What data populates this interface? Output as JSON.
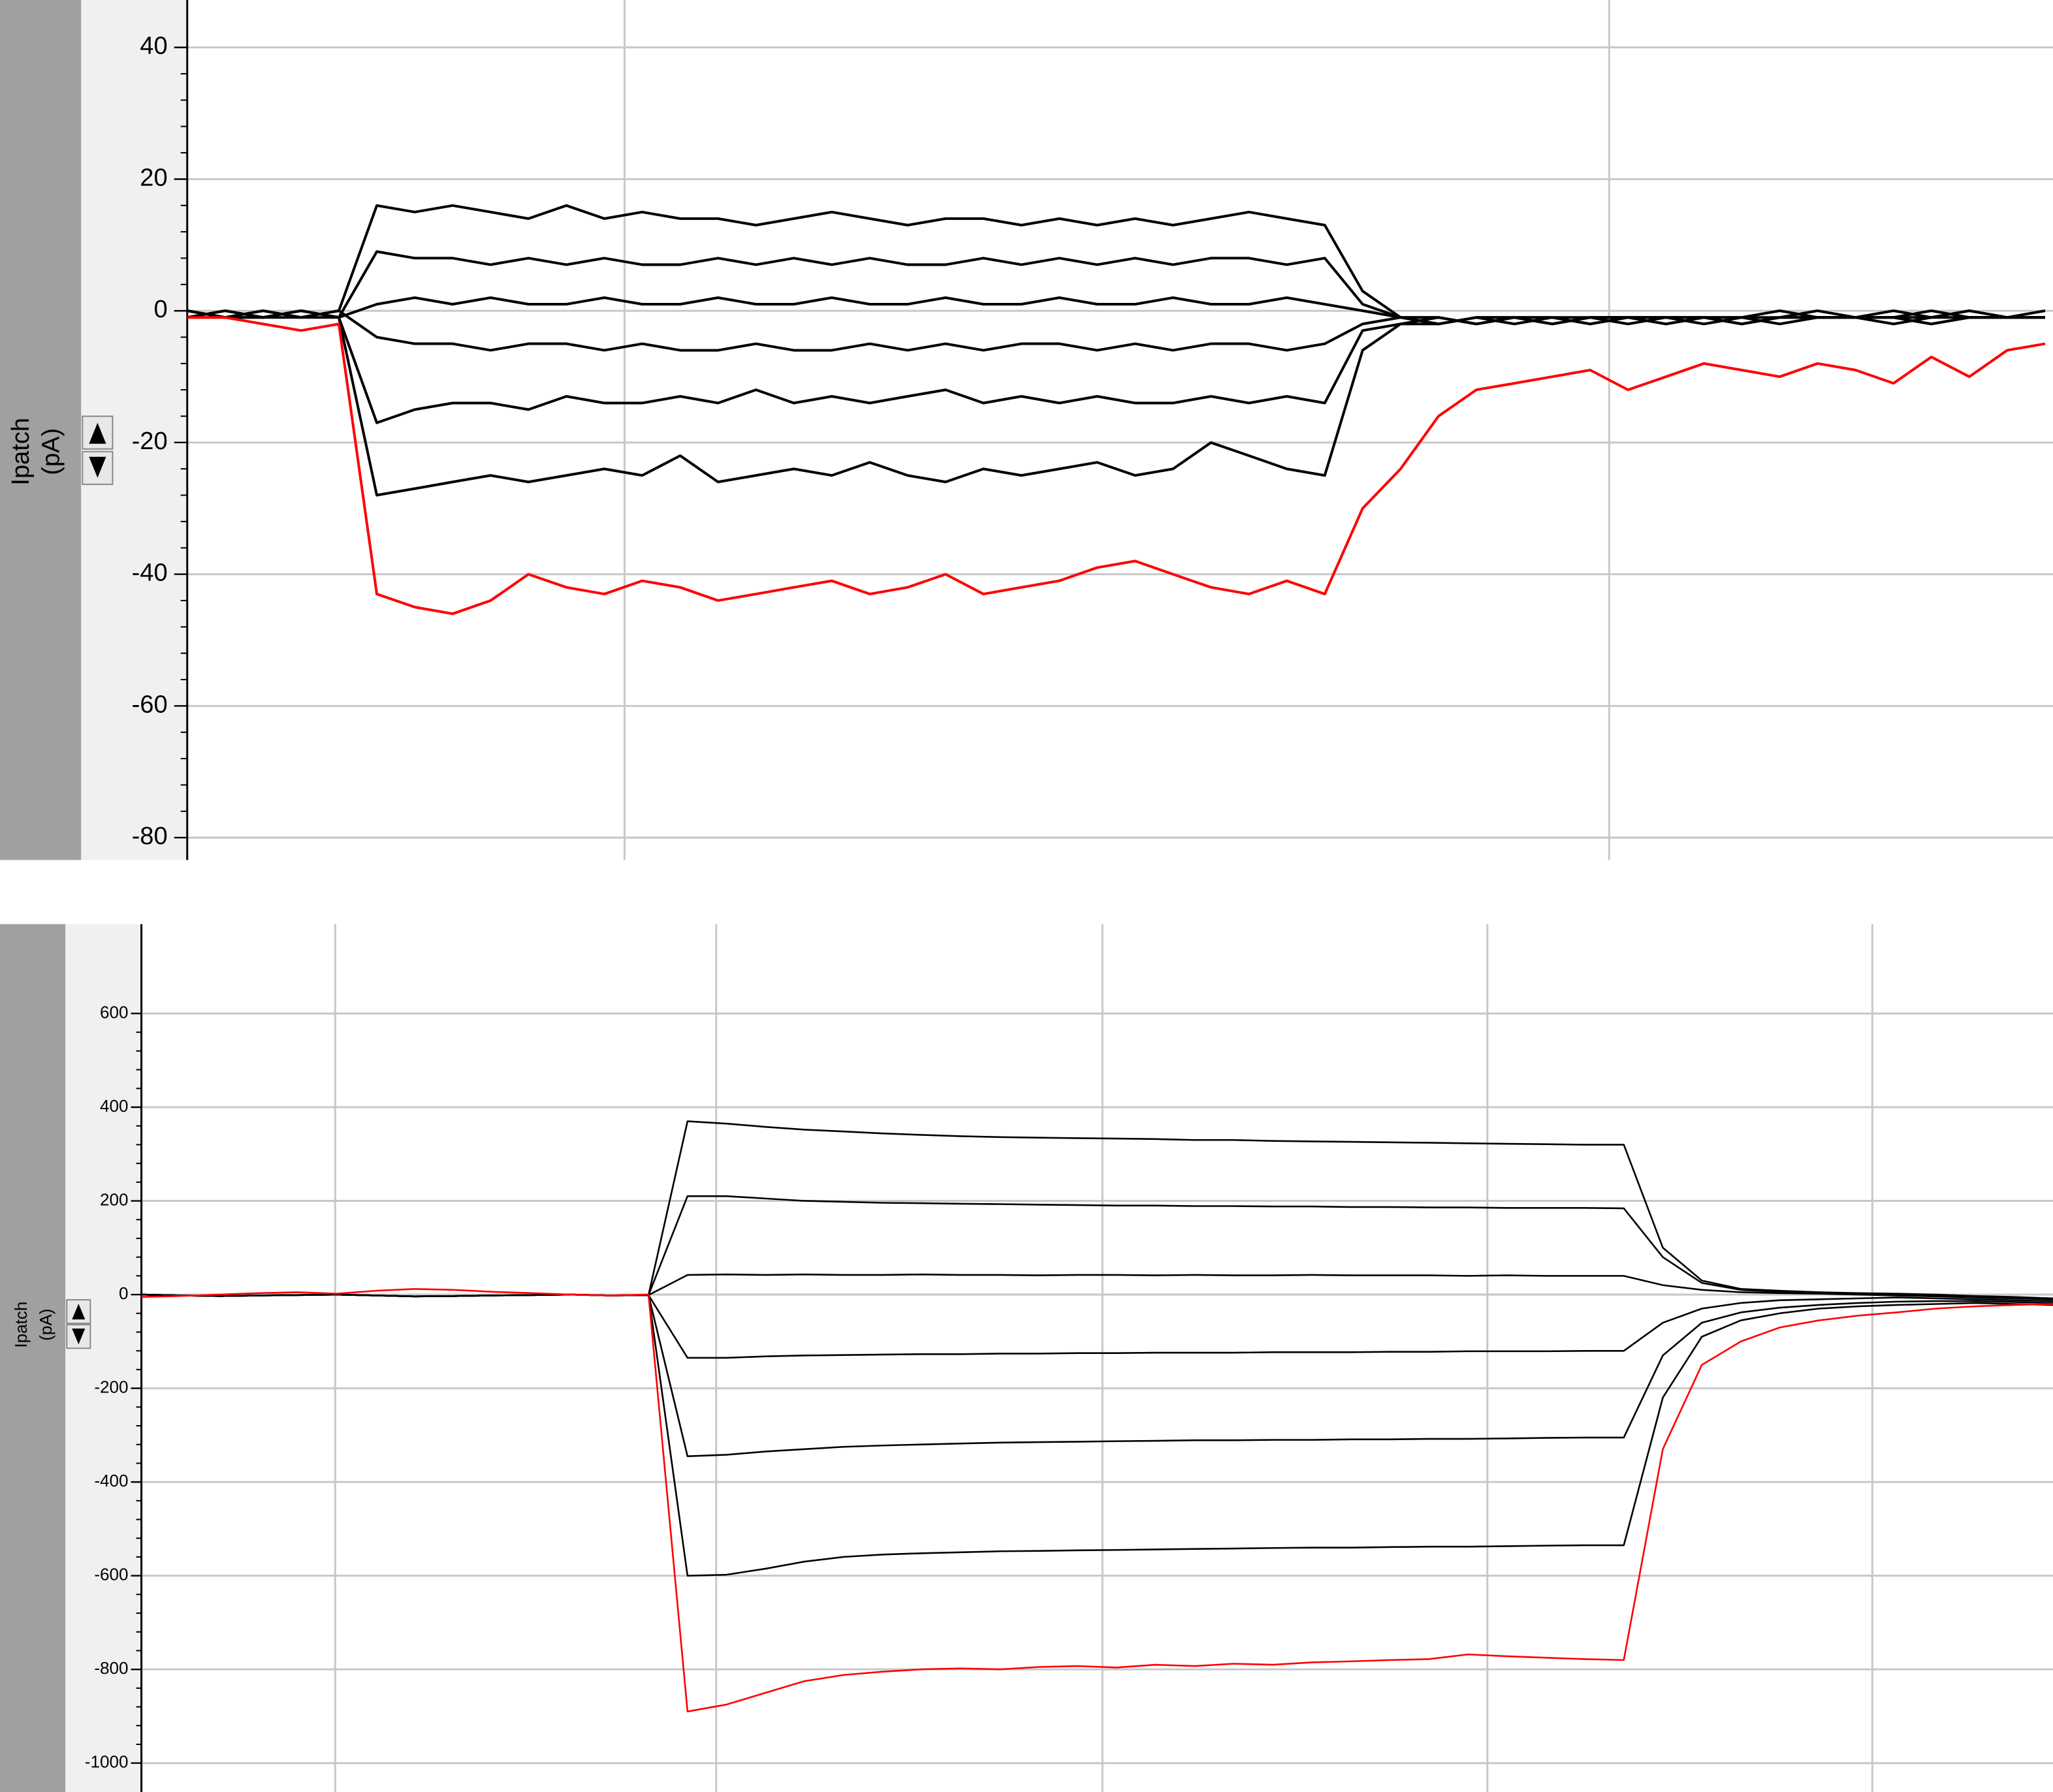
{
  "chart_data": [
    {
      "type": "line",
      "ylabel": "Ipatch",
      "yunit": "(pA)",
      "ylim": [
        -83.4,
        47.2
      ],
      "yticks": [
        40,
        20,
        0,
        -20,
        -40,
        -60,
        -80
      ],
      "grid": true,
      "categories": [
        null,
        null,
        null,
        null,
        null,
        null,
        null,
        null,
        null,
        null,
        null,
        null,
        null,
        null,
        null,
        null,
        null,
        null,
        null,
        null,
        null,
        null,
        null,
        null,
        null,
        null,
        null,
        null,
        null,
        null,
        null,
        null,
        null,
        null,
        null,
        null,
        null,
        null,
        null,
        null,
        null,
        null,
        null,
        null,
        null,
        null,
        null,
        null,
        null,
        null
      ],
      "series": [
        {
          "color": "#000000",
          "values": [
            0,
            -1,
            0,
            -1,
            0,
            16,
            15,
            16,
            15,
            14,
            16,
            14,
            15,
            14,
            14,
            13,
            14,
            15,
            14,
            13,
            14,
            14,
            13,
            14,
            13,
            14,
            13,
            14,
            15,
            14,
            13,
            3,
            -1,
            -1,
            -2,
            -1,
            -2,
            -1,
            -1,
            -1,
            -2,
            -1,
            0,
            -1,
            -1,
            0,
            -1,
            0,
            -1,
            0
          ]
        },
        {
          "color": "#000000",
          "values": [
            -1,
            0,
            -1,
            0,
            -1,
            9,
            8,
            8,
            7,
            8,
            7,
            8,
            7,
            7,
            8,
            7,
            8,
            7,
            8,
            7,
            7,
            8,
            7,
            8,
            7,
            8,
            7,
            8,
            8,
            7,
            8,
            1,
            -1,
            -2,
            -1,
            -1,
            -2,
            -1,
            -1,
            -2,
            -1,
            -1,
            -1,
            0,
            -1,
            -1,
            -1,
            0,
            -1,
            -1
          ]
        },
        {
          "color": "#000000",
          "values": [
            0,
            -1,
            -1,
            0,
            -1,
            1,
            2,
            1,
            2,
            1,
            1,
            2,
            1,
            1,
            2,
            1,
            1,
            2,
            1,
            1,
            2,
            1,
            1,
            2,
            1,
            1,
            2,
            1,
            1,
            2,
            1,
            0,
            -1,
            -1,
            -2,
            -1,
            -1,
            -2,
            -1,
            -1,
            -1,
            -2,
            -1,
            -1,
            -1,
            -1,
            0,
            -1,
            -1,
            -1
          ]
        },
        {
          "color": "#000000",
          "values": [
            -1,
            0,
            -1,
            -1,
            0,
            -4,
            -5,
            -5,
            -6,
            -5,
            -5,
            -6,
            -5,
            -6,
            -6,
            -5,
            -6,
            -6,
            -5,
            -6,
            -5,
            -6,
            -5,
            -5,
            -6,
            -5,
            -6,
            -5,
            -5,
            -6,
            -5,
            -2,
            -1,
            -2,
            -1,
            -1,
            -2,
            -1,
            -1,
            -2,
            -1,
            -1,
            -2,
            -1,
            -1,
            -1,
            -2,
            -1,
            -1,
            -1
          ]
        },
        {
          "color": "#000000",
          "values": [
            -1,
            -1,
            0,
            -1,
            -1,
            -17,
            -15,
            -14,
            -14,
            -15,
            -13,
            -14,
            -14,
            -13,
            -14,
            -12,
            -14,
            -13,
            -14,
            -13,
            -12,
            -14,
            -13,
            -14,
            -13,
            -14,
            -14,
            -13,
            -14,
            -13,
            -14,
            -3,
            -2,
            -1,
            -2,
            -1,
            -1,
            -2,
            -1,
            -1,
            -1,
            -2,
            -1,
            -1,
            -1,
            -1,
            -2,
            -1,
            -1,
            -1
          ]
        },
        {
          "color": "#000000",
          "values": [
            0,
            -1,
            -1,
            0,
            -1,
            -28,
            -27,
            -26,
            -25,
            -26,
            -25,
            -24,
            -25,
            -22,
            -26,
            -25,
            -24,
            -25,
            -23,
            -25,
            -26,
            -24,
            -25,
            -24,
            -23,
            -25,
            -24,
            -20,
            -22,
            -24,
            -25,
            -6,
            -2,
            -2,
            -1,
            -2,
            -1,
            -1,
            -2,
            -1,
            -1,
            -2,
            -1,
            -1,
            -1,
            -2,
            -1,
            -1,
            -1,
            -1
          ]
        },
        {
          "color": "#ff0000",
          "values": [
            -1,
            -1,
            -2,
            -3,
            -2,
            -43,
            -45,
            -46,
            -44,
            -40,
            -42,
            -43,
            -41,
            -42,
            -44,
            -43,
            -42,
            -41,
            -43,
            -42,
            -40,
            -43,
            -42,
            -41,
            -39,
            -38,
            -40,
            -42,
            -43,
            -41,
            -43,
            -30,
            -24,
            -16,
            -12,
            -11,
            -10,
            -9,
            -12,
            -10,
            -8,
            -9,
            -10,
            -8,
            -9,
            -11,
            -7,
            -10,
            -6,
            -5
          ]
        }
      ]
    },
    {
      "type": "line",
      "ylabel": "Ipatch",
      "yunit": "(pA)",
      "ylim": [
        -1061.7,
        790.7
      ],
      "yticks": [
        600,
        400,
        200,
        0,
        -200,
        -400,
        -600,
        -800,
        -1000
      ],
      "grid": true,
      "categories": [
        null,
        null,
        null,
        null,
        null,
        null,
        null,
        null,
        null,
        null,
        null,
        null,
        null,
        null,
        null,
        null,
        null,
        null,
        null,
        null,
        null,
        null,
        null,
        null,
        null,
        null,
        null,
        null,
        null,
        null,
        null,
        null,
        null,
        null,
        null,
        null,
        null,
        null,
        null,
        null,
        null,
        null,
        null,
        null,
        null,
        null,
        null,
        null,
        null,
        null
      ],
      "series": [
        {
          "color": "#000000",
          "values": [
            0,
            -2,
            -3,
            -2,
            -1,
            0,
            -2,
            -4,
            -3,
            -2,
            -1,
            0,
            -2,
            -1,
            370,
            365,
            358,
            352,
            348,
            344,
            341,
            338,
            336,
            335,
            334,
            333,
            332,
            330,
            330,
            328,
            327,
            326,
            325,
            324,
            323,
            322,
            321,
            320,
            320,
            100,
            30,
            12,
            8,
            5,
            3,
            2,
            0,
            -3,
            -5,
            -8
          ]
        },
        {
          "color": "#000000",
          "values": [
            0,
            -2,
            -3,
            -2,
            -1,
            0,
            -2,
            -4,
            -3,
            -2,
            -1,
            0,
            -2,
            -1,
            210,
            210,
            205,
            200,
            198,
            196,
            195,
            194,
            193,
            192,
            191,
            190,
            190,
            189,
            189,
            188,
            188,
            187,
            187,
            186,
            186,
            185,
            185,
            185,
            184,
            80,
            25,
            10,
            6,
            4,
            2,
            0,
            -2,
            -4,
            -6,
            -8
          ]
        },
        {
          "color": "#000000",
          "values": [
            0,
            -2,
            -3,
            -2,
            -1,
            0,
            -2,
            -4,
            -3,
            -2,
            -1,
            0,
            -2,
            -1,
            42,
            43,
            42,
            43,
            42,
            42,
            43,
            42,
            42,
            41,
            42,
            42,
            41,
            42,
            41,
            41,
            42,
            41,
            41,
            41,
            40,
            41,
            40,
            40,
            40,
            20,
            10,
            5,
            3,
            2,
            0,
            -2,
            -4,
            -6,
            -8,
            -10
          ]
        },
        {
          "color": "#000000",
          "values": [
            0,
            -2,
            -3,
            -2,
            -1,
            0,
            -2,
            -4,
            -3,
            -2,
            -1,
            0,
            -2,
            -1,
            -135,
            -135,
            -132,
            -130,
            -129,
            -128,
            -127,
            -127,
            -126,
            -126,
            -125,
            -125,
            -124,
            -124,
            -124,
            -123,
            -123,
            -123,
            -122,
            -122,
            -121,
            -121,
            -121,
            -120,
            -120,
            -60,
            -30,
            -18,
            -12,
            -10,
            -8,
            -6,
            -8,
            -10,
            -12,
            -14
          ]
        },
        {
          "color": "#000000",
          "values": [
            0,
            -2,
            -3,
            -2,
            -1,
            0,
            -2,
            -4,
            -3,
            -2,
            -1,
            0,
            -2,
            -1,
            -345,
            -342,
            -335,
            -330,
            -325,
            -322,
            -320,
            -318,
            -316,
            -315,
            -314,
            -313,
            -312,
            -311,
            -311,
            -310,
            -310,
            -309,
            -309,
            -308,
            -308,
            -307,
            -306,
            -305,
            -305,
            -130,
            -60,
            -38,
            -28,
            -22,
            -18,
            -15,
            -14,
            -14,
            -16,
            -18
          ]
        },
        {
          "color": "#000000",
          "values": [
            0,
            -2,
            -3,
            -2,
            -1,
            0,
            -2,
            -4,
            -3,
            -2,
            -1,
            0,
            -2,
            -1,
            -600,
            -598,
            -585,
            -570,
            -560,
            -555,
            -552,
            -550,
            -548,
            -547,
            -546,
            -545,
            -544,
            -543,
            -542,
            -541,
            -540,
            -540,
            -539,
            -538,
            -538,
            -537,
            -536,
            -535,
            -535,
            -220,
            -90,
            -55,
            -40,
            -30,
            -25,
            -22,
            -20,
            -18,
            -20,
            -22
          ]
        },
        {
          "color": "#ff0000",
          "values": [
            -5,
            -3,
            0,
            3,
            5,
            2,
            8,
            12,
            10,
            6,
            3,
            0,
            -2,
            0,
            -890,
            -875,
            -850,
            -825,
            -812,
            -805,
            -800,
            -798,
            -800,
            -795,
            -793,
            -796,
            -790,
            -793,
            -788,
            -790,
            -785,
            -783,
            -780,
            -778,
            -768,
            -772,
            -775,
            -778,
            -780,
            -330,
            -150,
            -100,
            -70,
            -55,
            -45,
            -38,
            -30,
            -25,
            -22,
            -20
          ]
        }
      ]
    }
  ]
}
